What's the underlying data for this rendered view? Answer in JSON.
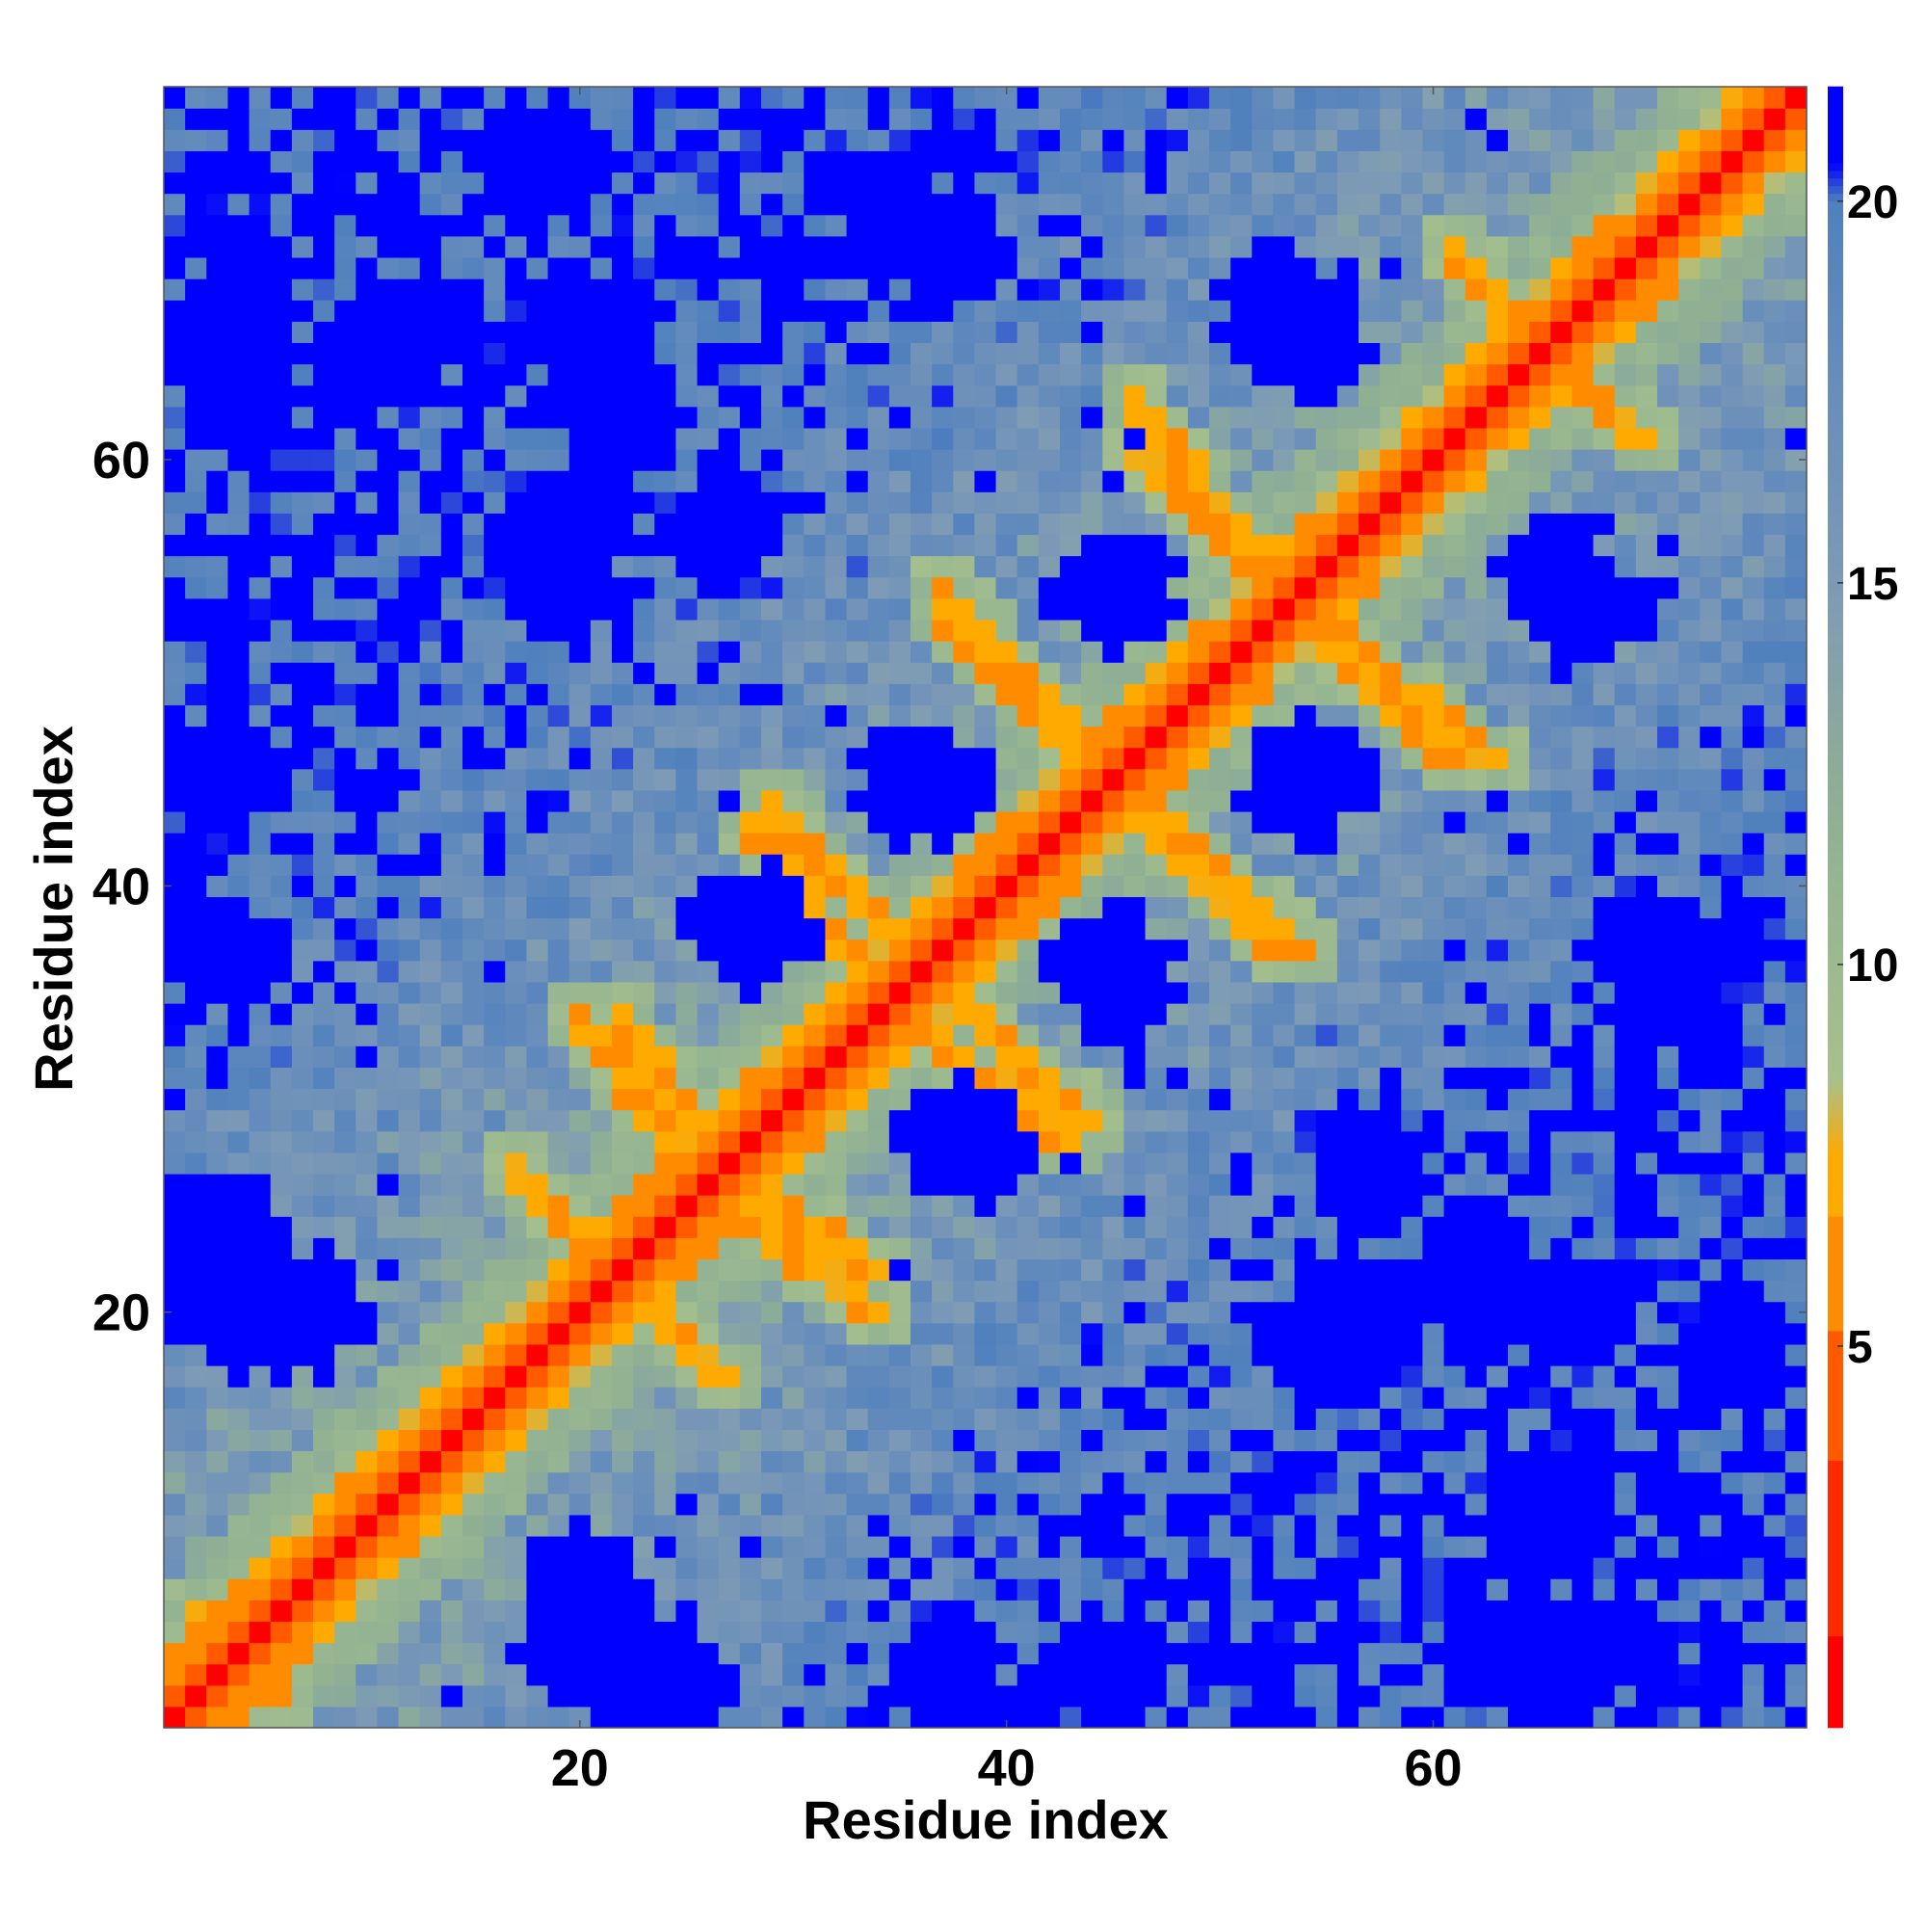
{
  "chart_data": {
    "type": "heatmap",
    "title": "",
    "xlabel": "Residue index",
    "ylabel": "Residue index",
    "n_residues": 77,
    "x_range": [
      1,
      77
    ],
    "y_range": [
      1,
      77
    ],
    "x_ticks": [
      20,
      40,
      60
    ],
    "y_ticks": [
      20,
      40,
      60
    ],
    "colorbar": {
      "ticks": [
        5,
        10,
        15,
        20
      ],
      "range": [
        0,
        21.5
      ],
      "stops": [
        {
          "v": 0,
          "color": "#ff0000"
        },
        {
          "v": 2.5,
          "color": "#ff2a00"
        },
        {
          "v": 4.5,
          "color": "#ff5a00"
        },
        {
          "v": 6.0,
          "color": "#ff8c00"
        },
        {
          "v": 7.5,
          "color": "#ffaa00"
        },
        {
          "v": 8.5,
          "color": "#a7c18d"
        },
        {
          "v": 12.0,
          "color": "#8fb093"
        },
        {
          "v": 15.0,
          "color": "#7d9ab6"
        },
        {
          "v": 19.0,
          "color": "#5b86bd"
        },
        {
          "v": 20.0,
          "color": "#4f80bd"
        },
        {
          "v": 20.5,
          "color": "#0000ff"
        },
        {
          "v": 21.5,
          "color": "#0000ff"
        }
      ]
    },
    "contact_segments": [
      {
        "i1": 2,
        "j1": 6,
        "i2": 5,
        "j2": 3
      },
      {
        "i1": 17,
        "j1": 27,
        "i2": 20,
        "j2": 23
      },
      {
        "i1": 22,
        "j1": 34,
        "i2": 25,
        "j2": 29
      },
      {
        "i1": 27,
        "j1": 25,
        "i2": 34,
        "j2": 20
      },
      {
        "i1": 29,
        "j1": 44,
        "i2": 35,
        "j2": 37
      },
      {
        "i1": 35,
        "j1": 34,
        "i2": 43,
        "j2": 28
      },
      {
        "i1": 37,
        "j1": 54,
        "i2": 44,
        "j2": 46
      },
      {
        "i1": 46,
        "j1": 44,
        "i2": 53,
        "j2": 37
      },
      {
        "i1": 46,
        "j1": 63,
        "i2": 51,
        "j2": 56
      },
      {
        "i1": 54,
        "j1": 53,
        "i2": 61,
        "j2": 46
      },
      {
        "i1": 61,
        "j1": 70,
        "i2": 66,
        "j2": 64
      }
    ],
    "far_blobs": [
      {
        "i": 18,
        "j": 74
      },
      {
        "i": 35,
        "j": 71
      },
      {
        "i": 53,
        "j": 67
      },
      {
        "i": 4,
        "j": 66
      },
      {
        "i": 22,
        "j": 62
      },
      {
        "i": 20,
        "j": 57
      },
      {
        "i": 45,
        "j": 54
      },
      {
        "i": 66,
        "j": 54
      },
      {
        "i": 36,
        "j": 45
      },
      {
        "i": 54,
        "j": 45
      },
      {
        "i": 45,
        "j": 36
      },
      {
        "i": 70,
        "j": 37
      },
      {
        "i": 3,
        "j": 37
      },
      {
        "i": 38,
        "j": 28
      },
      {
        "i": 57,
        "j": 27
      },
      {
        "i": 3,
        "j": 24
      },
      {
        "i": 66,
        "j": 20
      },
      {
        "i": 55,
        "j": 19
      },
      {
        "i": 4,
        "j": 20
      },
      {
        "i": 22,
        "j": 3
      },
      {
        "i": 45,
        "j": 3
      },
      {
        "i": 63,
        "j": 4
      },
      {
        "i": 20,
        "j": 7
      },
      {
        "i": 65,
        "j": 10
      }
    ]
  }
}
